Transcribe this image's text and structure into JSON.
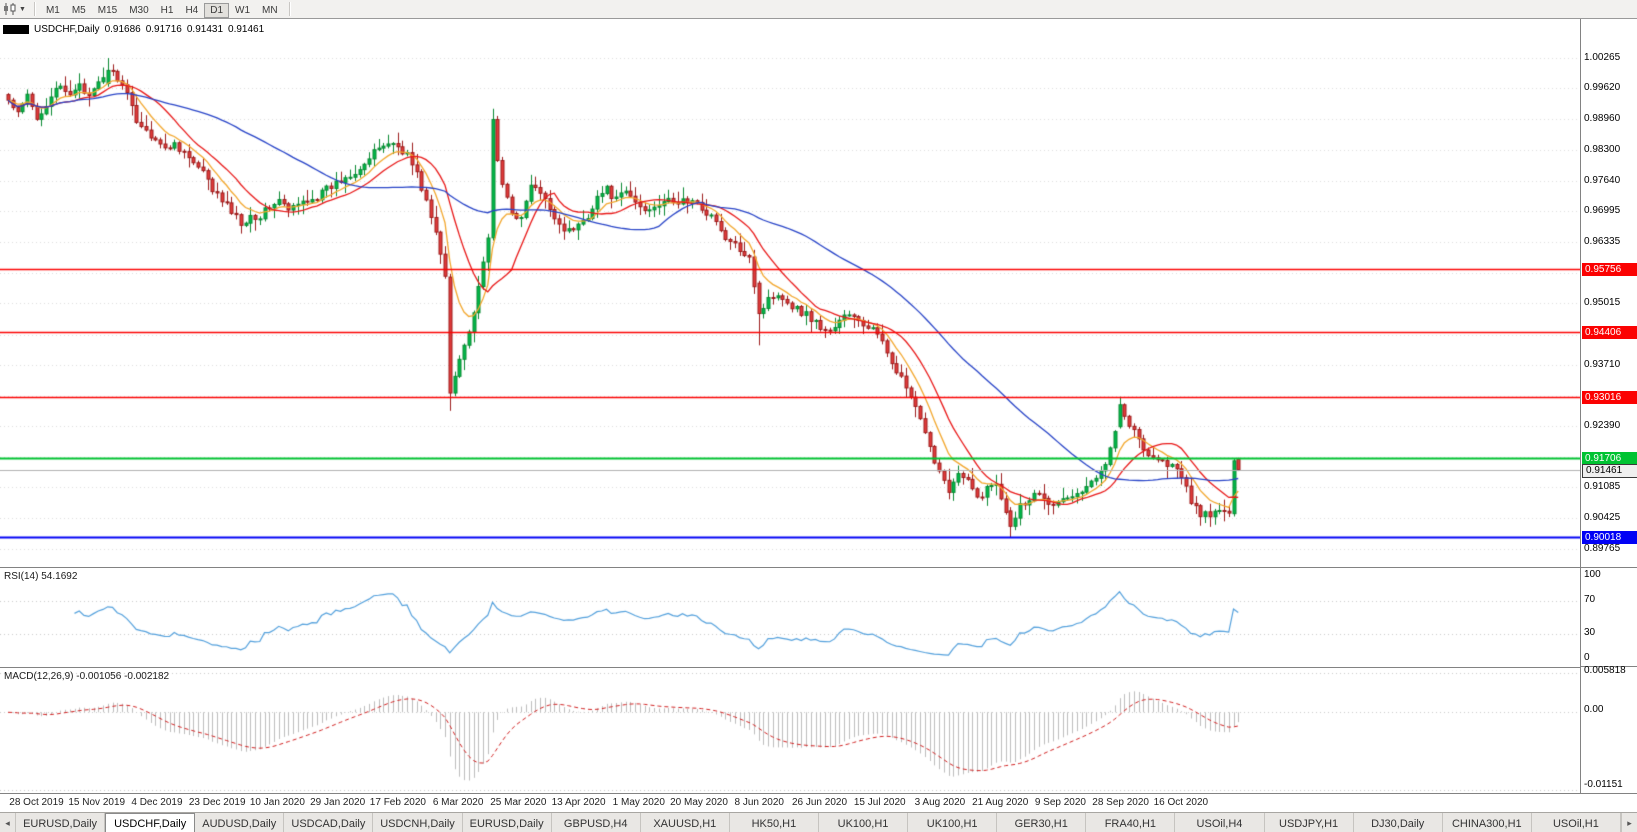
{
  "toolbar": {
    "timeframes": [
      "M1",
      "M5",
      "M15",
      "M30",
      "H1",
      "H4",
      "D1",
      "W1",
      "MN"
    ],
    "active_timeframe": "D1",
    "chart_type_icon": "candlestick-chart-icon",
    "dropdown_icon": "chevron-down-icon"
  },
  "chart": {
    "title": "USDCHF,Daily",
    "ohlc": {
      "open": "0.91686",
      "high": "0.91716",
      "low": "0.91431",
      "close": "0.91461"
    }
  },
  "rsi": {
    "label": "RSI(14)",
    "value": "54.1692",
    "scale": [
      "100",
      "70",
      "30",
      "0"
    ]
  },
  "macd": {
    "label": "MACD(12,26,9)",
    "values": "-0.001056 -0.002182",
    "scale_top": "0.005818",
    "scale_zero": "0.00",
    "scale_bottom": "-0.01151"
  },
  "price_scale": {
    "current": "0.91461"
  },
  "date_axis": {
    "labels": [
      "28 Oct 2019",
      "15 Nov 2019",
      "4 Dec 2019",
      "23 Dec 2019",
      "10 Jan 2020",
      "29 Jan 2020",
      "17 Feb 2020",
      "6 Mar 2020",
      "25 Mar 2020",
      "13 Apr 2020",
      "1 May 2020",
      "20 May 2020",
      "8 Jun 2020",
      "26 Jun 2020",
      "15 Jul 2020",
      "3 Aug 2020",
      "21 Aug 2020",
      "9 Sep 2020",
      "28 Sep 2020",
      "16 Oct 2020"
    ]
  },
  "tabs": {
    "items": [
      "EURUSD,Daily",
      "USDCHF,Daily",
      "AUDUSD,Daily",
      "USDCAD,Daily",
      "USDCNH,Daily",
      "EURUSD,Daily",
      "GBPUSD,H4",
      "XAUUSD,H1",
      "HK50,H1",
      "UK100,H1",
      "UK100,H1",
      "GER30,H1",
      "FRA40,H1",
      "USOil,H4",
      "USDJPY,H1",
      "DJ30,Daily",
      "CHINA300,H1",
      "USOil,H1"
    ],
    "active_index": 1
  },
  "chart_data": {
    "type": "candlestick",
    "symbol": "USDCHF",
    "timeframe": "Daily",
    "num_candles": 260,
    "x_range": [
      "28 Oct 2019",
      "16 Oct 2020"
    ],
    "y_axis_ticks": [
      1.00265,
      0.9962,
      0.9896,
      0.983,
      0.9764,
      0.96995,
      0.96335,
      0.95675,
      0.95015,
      0.9435,
      0.9371,
      0.9303,
      0.9239,
      0.9173,
      0.91085,
      0.90425,
      0.89765
    ],
    "current_price": 0.91461,
    "levels": [
      {
        "price": 0.95756,
        "color": "#fb0202"
      },
      {
        "price": 0.94406,
        "color": "#fb0202"
      },
      {
        "price": 0.93016,
        "color": "#fb0202"
      },
      {
        "price": 0.91706,
        "color": "#00c332"
      },
      {
        "price": 0.90018,
        "color": "#0202f5"
      }
    ],
    "candles": {
      "up_color": "#00b84a",
      "up_border": "#0a8a32",
      "down_color": "#e23b3b",
      "down_border": "#9c1c1c"
    },
    "moving_averages": [
      {
        "name": "fast",
        "type": "ema",
        "period": 8,
        "color": "#f2a72e"
      },
      {
        "name": "mid",
        "type": "sma",
        "period": 14,
        "color": "#e81717"
      },
      {
        "name": "slow",
        "type": "sma",
        "period": 45,
        "color": "#2743c7"
      }
    ],
    "indicators": {
      "rsi": {
        "period": 14,
        "current": 54.1692,
        "color": "#53a0dc",
        "levels": [
          70,
          30
        ],
        "range": [
          0,
          100
        ]
      },
      "macd": {
        "fast": 12,
        "slow": 26,
        "signal": 9,
        "main": -0.001056,
        "signal_value": -0.002182,
        "hist_color": "#bdbdbd",
        "signal_color": "#d02020",
        "range": [
          -0.01151,
          0.005818
        ]
      }
    },
    "grid_color": "#dcdcdc",
    "waypoints": [
      [
        0,
        0.9935
      ],
      [
        2,
        0.9905
      ],
      [
        4,
        0.9945
      ],
      [
        6,
        0.9895
      ],
      [
        8,
        0.993
      ],
      [
        10,
        0.9965
      ],
      [
        13,
        0.9945
      ],
      [
        15,
        0.9975
      ],
      [
        17,
        0.994
      ],
      [
        19,
        0.997
      ],
      [
        21,
        1.0
      ],
      [
        23,
        0.9985
      ],
      [
        25,
        0.9945
      ],
      [
        27,
        0.9895
      ],
      [
        29,
        0.987
      ],
      [
        31,
        0.9855
      ],
      [
        33,
        0.983
      ],
      [
        35,
        0.9845
      ],
      [
        37,
        0.9825
      ],
      [
        39,
        0.98
      ],
      [
        41,
        0.978
      ],
      [
        43,
        0.9745
      ],
      [
        45,
        0.972
      ],
      [
        47,
        0.97
      ],
      [
        49,
        0.9672
      ],
      [
        51,
        0.969
      ],
      [
        53,
        0.9688
      ],
      [
        55,
        0.971
      ],
      [
        57,
        0.9722
      ],
      [
        59,
        0.97
      ],
      [
        61,
        0.9712
      ],
      [
        63,
        0.9725
      ],
      [
        65,
        0.973
      ],
      [
        67,
        0.9745
      ],
      [
        70,
        0.9765
      ],
      [
        73,
        0.9785
      ],
      [
        76,
        0.981
      ],
      [
        78,
        0.9835
      ],
      [
        80,
        0.9845
      ],
      [
        82,
        0.9838
      ],
      [
        84,
        0.982
      ],
      [
        86,
        0.9778
      ],
      [
        88,
        0.972
      ],
      [
        90,
        0.965
      ],
      [
        92,
        0.956
      ],
      [
        93,
        0.931
      ],
      [
        95,
        0.939
      ],
      [
        97,
        0.944
      ],
      [
        99,
        0.953
      ],
      [
        101,
        0.964
      ],
      [
        102,
        0.9895
      ],
      [
        103,
        0.98
      ],
      [
        104,
        0.9755
      ],
      [
        106,
        0.97
      ],
      [
        108,
        0.968
      ],
      [
        110,
        0.9755
      ],
      [
        112,
        0.9735
      ],
      [
        114,
        0.9705
      ],
      [
        116,
        0.9672
      ],
      [
        118,
        0.9655
      ],
      [
        120,
        0.9668
      ],
      [
        122,
        0.969
      ],
      [
        124,
        0.973
      ],
      [
        126,
        0.9745
      ],
      [
        128,
        0.9722
      ],
      [
        130,
        0.974
      ],
      [
        132,
        0.9718
      ],
      [
        134,
        0.97
      ],
      [
        136,
        0.9712
      ],
      [
        138,
        0.9722
      ],
      [
        140,
        0.9715
      ],
      [
        142,
        0.9722
      ],
      [
        144,
        0.9718
      ],
      [
        146,
        0.9705
      ],
      [
        148,
        0.969
      ],
      [
        150,
        0.9655
      ],
      [
        152,
        0.963
      ],
      [
        154,
        0.9618
      ],
      [
        156,
        0.9605
      ],
      [
        158,
        0.948
      ],
      [
        160,
        0.951
      ],
      [
        162,
        0.9525
      ],
      [
        164,
        0.9505
      ],
      [
        166,
        0.949
      ],
      [
        168,
        0.9478
      ],
      [
        170,
        0.9462
      ],
      [
        172,
        0.944
      ],
      [
        174,
        0.9452
      ],
      [
        176,
        0.9478
      ],
      [
        178,
        0.947
      ],
      [
        180,
        0.9455
      ],
      [
        182,
        0.9448
      ],
      [
        184,
        0.9415
      ],
      [
        186,
        0.938
      ],
      [
        188,
        0.934
      ],
      [
        190,
        0.93
      ],
      [
        192,
        0.925
      ],
      [
        194,
        0.919
      ],
      [
        196,
        0.9145
      ],
      [
        198,
        0.9105
      ],
      [
        200,
        0.9135
      ],
      [
        202,
        0.912
      ],
      [
        204,
        0.9085
      ],
      [
        206,
        0.9105
      ],
      [
        208,
        0.9118
      ],
      [
        210,
        0.906
      ],
      [
        211,
        0.9025
      ],
      [
        213,
        0.907
      ],
      [
        215,
        0.9085
      ],
      [
        217,
        0.91
      ],
      [
        219,
        0.908
      ],
      [
        221,
        0.9072
      ],
      [
        223,
        0.9088
      ],
      [
        225,
        0.9092
      ],
      [
        227,
        0.9108
      ],
      [
        229,
        0.9125
      ],
      [
        231,
        0.9165
      ],
      [
        233,
        0.9235
      ],
      [
        234,
        0.9285
      ],
      [
        235,
        0.926
      ],
      [
        237,
        0.9228
      ],
      [
        239,
        0.919
      ],
      [
        241,
        0.9175
      ],
      [
        243,
        0.9162
      ],
      [
        245,
        0.9155
      ],
      [
        247,
        0.913
      ],
      [
        249,
        0.908
      ],
      [
        251,
        0.9052
      ],
      [
        253,
        0.9045
      ],
      [
        255,
        0.9062
      ],
      [
        257,
        0.905
      ],
      [
        258,
        0.9165
      ],
      [
        259,
        0.91461
      ]
    ],
    "overrides": [
      {
        "i": 21,
        "o": 0.9972,
        "h": 1.00265,
        "l": 0.9965,
        "c": 1.0
      },
      {
        "i": 93,
        "o": 0.9558,
        "h": 0.9565,
        "l": 0.9272,
        "c": 0.931
      },
      {
        "i": 102,
        "o": 0.9642,
        "h": 0.9918,
        "l": 0.9636,
        "c": 0.9895
      },
      {
        "i": 158,
        "o": 0.9545,
        "h": 0.955,
        "l": 0.9412,
        "c": 0.948
      },
      {
        "i": 211,
        "o": 0.9058,
        "h": 0.9066,
        "l": 0.9001,
        "c": 0.9025
      },
      {
        "i": 234,
        "o": 0.9238,
        "h": 0.9302,
        "l": 0.9234,
        "c": 0.9285
      },
      {
        "i": 258,
        "o": 0.9052,
        "h": 0.9171,
        "l": 0.9046,
        "c": 0.9165
      },
      {
        "i": 259,
        "o": 0.91686,
        "h": 0.91716,
        "l": 0.91431,
        "c": 0.91461
      }
    ]
  }
}
